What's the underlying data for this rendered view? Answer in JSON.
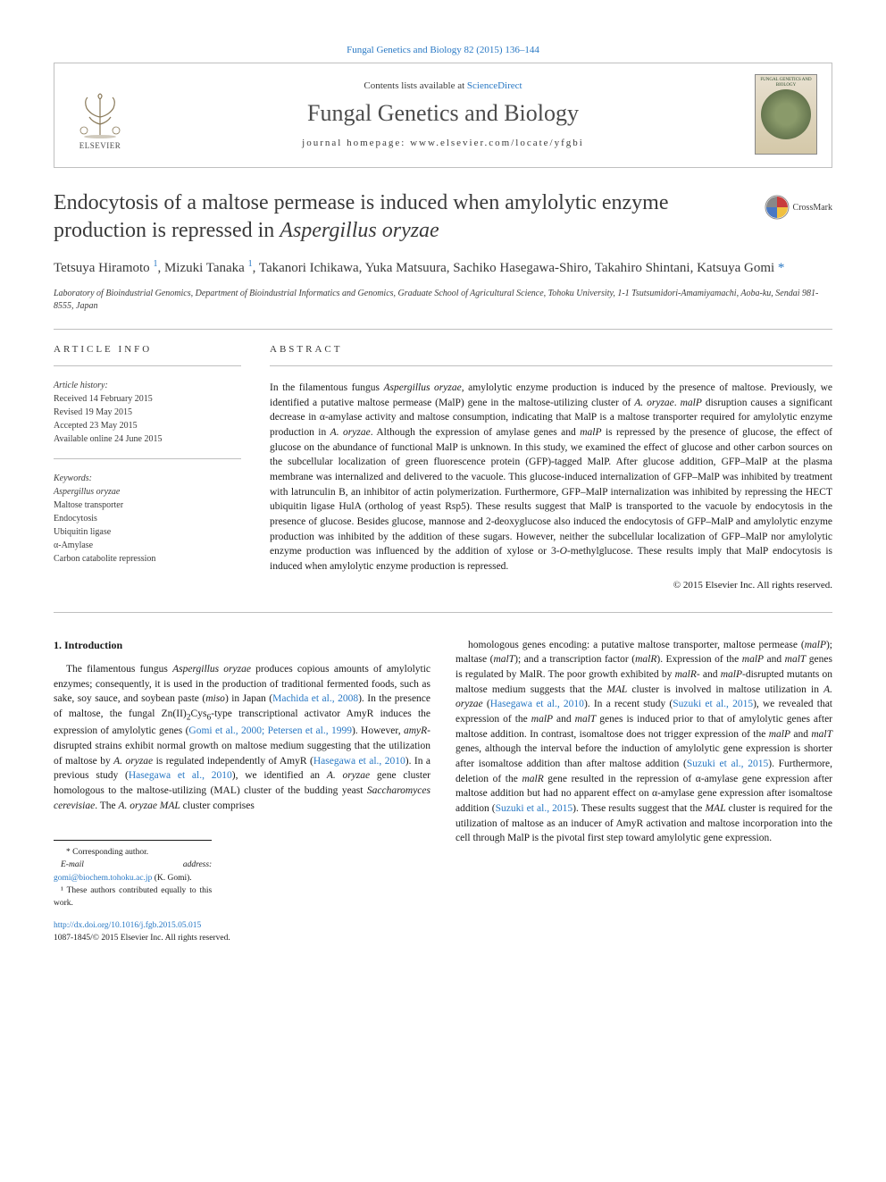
{
  "top_citation": "Fungal Genetics and Biology 82 (2015) 136–144",
  "header": {
    "contents_prefix": "Contents lists available at ",
    "contents_link": "ScienceDirect",
    "journal": "Fungal Genetics and Biology",
    "homepage_prefix": "journal homepage: ",
    "homepage_url": "www.elsevier.com/locate/yfgbi",
    "elsevier": "ELSEVIER",
    "cover_title": "FUNGAL GENETICS AND BIOLOGY"
  },
  "crossmark": "CrossMark",
  "title_plain": "Endocytosis of a maltose permease is induced when amylolytic enzyme production is repressed in ",
  "title_species": "Aspergillus oryzae",
  "authors_html": "Tetsuya Hiramoto <sup>1</sup>, Mizuki Tanaka <sup>1</sup>, Takanori Ichikawa, Yuka Matsuura, Sachiko Hasegawa-Shiro, Takahiro Shintani, Katsuya Gomi <span class=\"ast\">*</span>",
  "affiliation": "Laboratory of Bioindustrial Genomics, Department of Bioindustrial Informatics and Genomics, Graduate School of Agricultural Science, Tohoku University, 1-1 Tsutsumidori-Amamiyamachi, Aoba-ku, Sendai 981-8555, Japan",
  "article_info": {
    "label": "article info",
    "history_head": "Article history:",
    "history": "Received 14 February 2015\nRevised 19 May 2015\nAccepted 23 May 2015\nAvailable online 24 June 2015",
    "keywords_head": "Keywords:",
    "keywords": "Aspergillus oryzae\nMaltose transporter\nEndocytosis\nUbiquitin ligase\nα-Amylase\nCarbon catabolite repression"
  },
  "abstract": {
    "label": "abstract",
    "text_html": "In the filamentous fungus <em>Aspergillus oryzae</em>, amylolytic enzyme production is induced by the presence of maltose. Previously, we identified a putative maltose permease (MalP) gene in the maltose-utilizing cluster of <em>A. oryzae</em>. <em>malP</em> disruption causes a significant decrease in α-amylase activity and maltose consumption, indicating that MalP is a maltose transporter required for amylolytic enzyme production in <em>A. oryzae</em>. Although the expression of amylase genes and <em>malP</em> is repressed by the presence of glucose, the effect of glucose on the abundance of functional MalP is unknown. In this study, we examined the effect of glucose and other carbon sources on the subcellular localization of green fluorescence protein (GFP)-tagged MalP. After glucose addition, GFP–MalP at the plasma membrane was internalized and delivered to the vacuole. This glucose-induced internalization of GFP–MalP was inhibited by treatment with latrunculin B, an inhibitor of actin polymerization. Furthermore, GFP–MalP internalization was inhibited by repressing the HECT ubiquitin ligase HulA (ortholog of yeast Rsp5). These results suggest that MalP is transported to the vacuole by endocytosis in the presence of glucose. Besides glucose, mannose and 2-deoxyglucose also induced the endocytosis of GFP–MalP and amylolytic enzyme production was inhibited by the addition of these sugars. However, neither the subcellular localization of GFP–MalP nor amylolytic enzyme production was influenced by the addition of xylose or 3-<em>O</em>-methylglucose. These results imply that MalP endocytosis is induced when amylolytic enzyme production is repressed.",
    "copyright": "© 2015 Elsevier Inc. All rights reserved."
  },
  "intro": {
    "heading": "1. Introduction",
    "col1_html": "The filamentous fungus <em>Aspergillus oryzae</em> produces copious amounts of amylolytic enzymes; consequently, it is used in the production of traditional fermented foods, such as sake, soy sauce, and soybean paste (<em>miso</em>) in Japan (<a href=\"#\">Machida et al., 2008</a>). In the presence of maltose, the fungal Zn(II)<sub>2</sub>Cys<sub>6</sub>-type transcriptional activator AmyR induces the expression of amylolytic genes (<a href=\"#\">Gomi et al., 2000; Petersen et al., 1999</a>). However, <em>amyR</em>-disrupted strains exhibit normal growth on maltose medium suggesting that the utilization of maltose by <em>A. oryzae</em> is regulated independently of AmyR (<a href=\"#\">Hasegawa et al., 2010</a>). In a previous study (<a href=\"#\">Hasegawa et al., 2010</a>), we identified an <em>A. oryzae</em> gene cluster homologous to the maltose-utilizing (MAL) cluster of the budding yeast <em>Saccharomyces cerevisiae</em>. The <em>A. oryzae MAL</em> cluster comprises",
    "col2_html": "homologous genes encoding: a putative maltose transporter, maltose permease (<em>malP</em>); maltase (<em>malT</em>); and a transcription factor (<em>malR</em>). Expression of the <em>malP</em> and <em>malT</em> genes is regulated by MalR. The poor growth exhibited by <em>malR</em>- and <em>malP</em>-disrupted mutants on maltose medium suggests that the <em>MAL</em> cluster is involved in maltose utilization in <em>A. oryzae</em> (<a href=\"#\">Hasegawa et al., 2010</a>). In a recent study (<a href=\"#\">Suzuki et al., 2015</a>), we revealed that expression of the <em>malP</em> and <em>malT</em> genes is induced prior to that of amylolytic genes after maltose addition. In contrast, isomaltose does not trigger expression of the <em>malP</em> and <em>malT</em> genes, although the interval before the induction of amylolytic gene expression is shorter after isomaltose addition than after maltose addition (<a href=\"#\">Suzuki et al., 2015</a>). Furthermore, deletion of the <em>malR</em> gene resulted in the repression of α-amylase gene expression after maltose addition but had no apparent effect on α-amylase gene expression after isomaltose addition (<a href=\"#\">Suzuki et al., 2015</a>). These results suggest that the <em>MAL</em> cluster is required for the utilization of maltose as an inducer of AmyR activation and maltose incorporation into the cell through MalP is the pivotal first step toward amylolytic gene expression."
  },
  "footnotes": {
    "corr": "* Corresponding author.",
    "email_label": "E-mail address: ",
    "email": "gomi@biochem.tohoku.ac.jp",
    "email_suffix": " (K. Gomi).",
    "equal": "¹ These authors contributed equally to this work."
  },
  "footer": {
    "doi": "http://dx.doi.org/10.1016/j.fgb.2015.05.015",
    "issn": "1087-1845/© 2015 Elsevier Inc. All rights reserved."
  },
  "colors": {
    "link": "#2878c4",
    "border": "#bfbfbf",
    "text": "#1a1a1a",
    "muted": "#3a3a3a"
  }
}
